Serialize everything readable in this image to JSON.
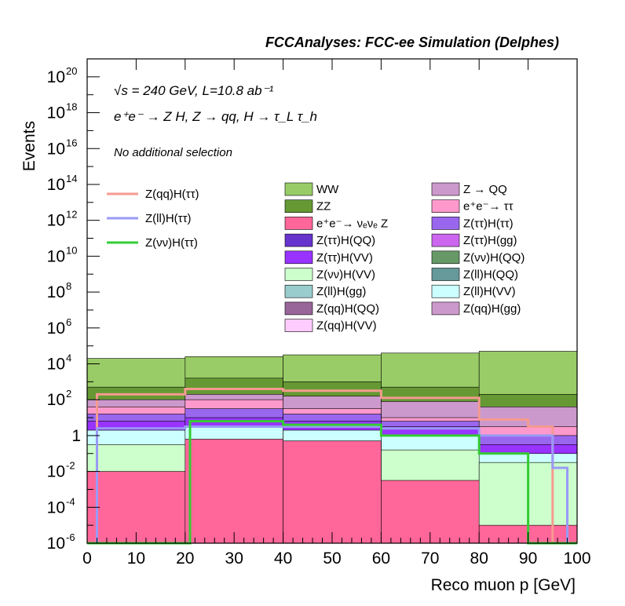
{
  "chart_data": {
    "type": "bar",
    "stacked": true,
    "title": "FCCAnalyses: FCC-ee Simulation (Delphes)",
    "xlabel": "Reco muon p [GeV]",
    "ylabel": "Events",
    "xlim": [
      0,
      100
    ],
    "ylim": [
      1e-06,
      1e+21
    ],
    "log_y": true,
    "x_ticks": [
      "0",
      "10",
      "20",
      "30",
      "40",
      "50",
      "60",
      "70",
      "80",
      "90",
      "100"
    ],
    "y_ticks": [
      {
        "base": "10",
        "exp": "-6"
      },
      {
        "base": "10",
        "exp": "-4"
      },
      {
        "base": "10",
        "exp": "-2"
      },
      {
        "base": "1",
        "exp": ""
      },
      {
        "base": "10",
        "exp": "2"
      },
      {
        "base": "10",
        "exp": "4"
      },
      {
        "base": "10",
        "exp": "6"
      },
      {
        "base": "10",
        "exp": "8"
      },
      {
        "base": "10",
        "exp": "10"
      },
      {
        "base": "10",
        "exp": "12"
      },
      {
        "base": "10",
        "exp": "14"
      },
      {
        "base": "10",
        "exp": "16"
      },
      {
        "base": "10",
        "exp": "18"
      },
      {
        "base": "10",
        "exp": "20"
      }
    ],
    "annotations": {
      "energy_line": "√s = 240 GeV, L=10.8 ab⁻¹",
      "process_line": "e⁺e⁻ → Z H, Z → qq, H → τ_L τ_h",
      "selection": "No additional selection"
    },
    "signal_legend": [
      {
        "label": "Z(qq)H(ττ)",
        "color": "#f59a90"
      },
      {
        "label": "Z(ll)H(ττ)",
        "color": "#9a9af5"
      },
      {
        "label": "Z(νν)H(ττ)",
        "color": "#33cc33"
      }
    ],
    "background_legend": [
      {
        "label": "WW",
        "color": "#99cc66"
      },
      {
        "label": "Z → QQ",
        "color": "#cc99cc"
      },
      {
        "label": "ZZ",
        "color": "#669933"
      },
      {
        "label": "e⁺e⁻→ ττ",
        "color": "#ff99cc"
      },
      {
        "label": "e⁺e⁻→ νₑνₑ Z",
        "color": "#ff6699"
      },
      {
        "label": "Z(ττ)H(ττ)",
        "color": "#9966ee"
      },
      {
        "label": "Z(ττ)H(QQ)",
        "color": "#6633cc"
      },
      {
        "label": "Z(ττ)H(gg)",
        "color": "#cc66ee"
      },
      {
        "label": "Z(ττ)H(VV)",
        "color": "#9933ff"
      },
      {
        "label": "Z(νν)H(QQ)",
        "color": "#669966"
      },
      {
        "label": "Z(νν)H(VV)",
        "color": "#ccffcc"
      },
      {
        "label": "Z(ll)H(QQ)",
        "color": "#669999"
      },
      {
        "label": "Z(ll)H(gg)",
        "color": "#99cccc"
      },
      {
        "label": "Z(ll)H(VV)",
        "color": "#ccffff"
      },
      {
        "label": "Z(qq)H(QQ)",
        "color": "#996699"
      },
      {
        "label": "Z(qq)H(gg)",
        "color": "#cc99cc"
      },
      {
        "label": "Z(qq)H(VV)",
        "color": "#ffccff"
      }
    ],
    "bin_edges": [
      0,
      20,
      40,
      60,
      80,
      100
    ],
    "stack_levels_log10": [
      {
        "name": "WW",
        "values": [
          4.3,
          4.4,
          4.5,
          4.6,
          4.7
        ]
      },
      {
        "name": "ZZ",
        "values": [
          2.7,
          3.2,
          3.0,
          2.7,
          2.3
        ]
      },
      {
        "name": "Z → QQ",
        "values": [
          2.0,
          2.3,
          2.2,
          1.9,
          1.6
        ]
      },
      {
        "name": "e⁺e⁻→ ττ",
        "values": [
          1.6,
          2.0,
          1.5,
          1.0,
          0.5
        ]
      },
      {
        "name": "Z(ττ)H(ττ)",
        "values": [
          1.2,
          1.5,
          1.2,
          0.8,
          0.0
        ]
      },
      {
        "name": "Z(ττ)H(VV)",
        "values": [
          0.8,
          1.0,
          0.8,
          0.5,
          -0.5
        ]
      },
      {
        "name": "Z(ll)H(VV)",
        "values": [
          0.3,
          0.5,
          0.3,
          0.0,
          -1.0
        ]
      },
      {
        "name": "Z(νν)H(VV)",
        "values": [
          -0.5,
          -0.3,
          -0.3,
          -0.8,
          -1.5
        ]
      },
      {
        "name": "e⁺e⁻→ νₑνₑ Z",
        "values": [
          -2.0,
          -0.2,
          -0.3,
          -2.5,
          -5.0
        ]
      }
    ],
    "signal_lines_log10": [
      {
        "name": "Z(qq)H(ττ)",
        "x": [
          0,
          2,
          20,
          40,
          60,
          80,
          90,
          95,
          100
        ],
        "y": [
          -6,
          2.3,
          2.6,
          2.5,
          2.1,
          0.9,
          0.5,
          -6,
          -6
        ]
      },
      {
        "name": "Z(ll)H(ττ)",
        "x": [
          0,
          2,
          20,
          40,
          60,
          80,
          95,
          98,
          100
        ],
        "y": [
          -6,
          0.4,
          0.5,
          0.5,
          0.4,
          0.0,
          -1.8,
          -6,
          -6
        ]
      },
      {
        "name": "Z(νν)H(ττ)",
        "x": [
          0,
          20,
          21,
          40,
          60,
          80,
          90,
          100
        ],
        "y": [
          -6,
          -6,
          0.8,
          0.6,
          0.0,
          -1.0,
          -6,
          -6
        ]
      }
    ]
  }
}
